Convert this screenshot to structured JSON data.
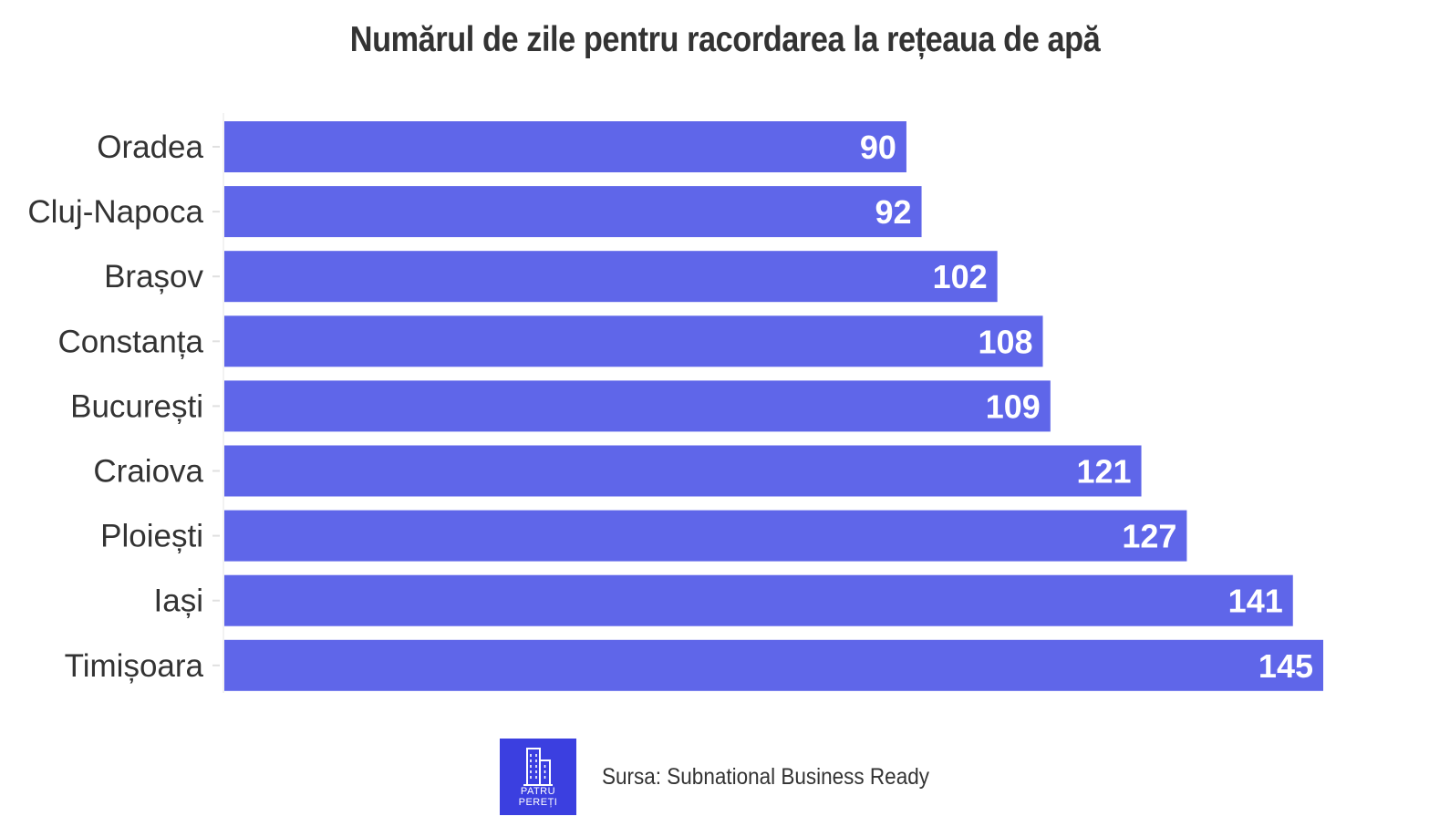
{
  "chart_data": {
    "type": "bar",
    "orientation": "horizontal",
    "title": "Numărul de zile pentru racordarea la rețeaua de apă",
    "categories": [
      "Oradea",
      "Cluj-Napoca",
      "Brașov",
      "Constanța",
      "București",
      "Craiova",
      "Ploiești",
      "Iași",
      "Timișoara"
    ],
    "values": [
      90,
      92,
      102,
      108,
      109,
      121,
      127,
      141,
      145
    ],
    "xlim": [
      0,
      145
    ],
    "xlabel": "",
    "ylabel": "",
    "grid": false,
    "data_labels": true,
    "bar_color": "#5f66e9"
  },
  "footer": {
    "logo_line1": "PATRU",
    "logo_line2": "PEREȚI",
    "source": "Sursa: Subnational Business Ready",
    "logo_color": "#3b3fe0"
  }
}
